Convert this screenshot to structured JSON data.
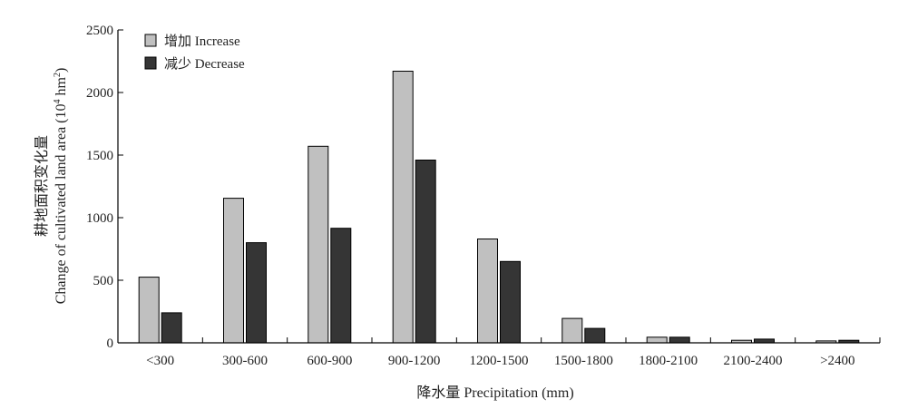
{
  "chart_data": {
    "type": "bar",
    "categories": [
      "<300",
      "300-600",
      "600-900",
      "900-1200",
      "1200-1500",
      "1500-1800",
      "1800-2100",
      "2100-2400",
      ">2400"
    ],
    "series": [
      {
        "name": "增加 Increase",
        "values": [
          525,
          1155,
          1570,
          2170,
          830,
          195,
          45,
          20,
          15
        ],
        "color": "#c0c0c0"
      },
      {
        "name": "减少 Decrease",
        "values": [
          240,
          800,
          915,
          1460,
          650,
          115,
          45,
          30,
          20
        ],
        "color": "#353535"
      }
    ],
    "xlabel": "降水量 Precipitation (mm)",
    "ylabel_line1": "耕地面积变化量",
    "ylabel_line2": "Change of cultivated land area (10",
    "ylabel_sup1": "4",
    "ylabel_mid": " hm",
    "ylabel_sup2": "2",
    "ylabel_end": ")",
    "ylim": [
      0,
      2500
    ],
    "yticks": [
      0,
      500,
      1000,
      1500,
      2000,
      2500
    ],
    "grid": false,
    "legend_position": "top-left"
  }
}
